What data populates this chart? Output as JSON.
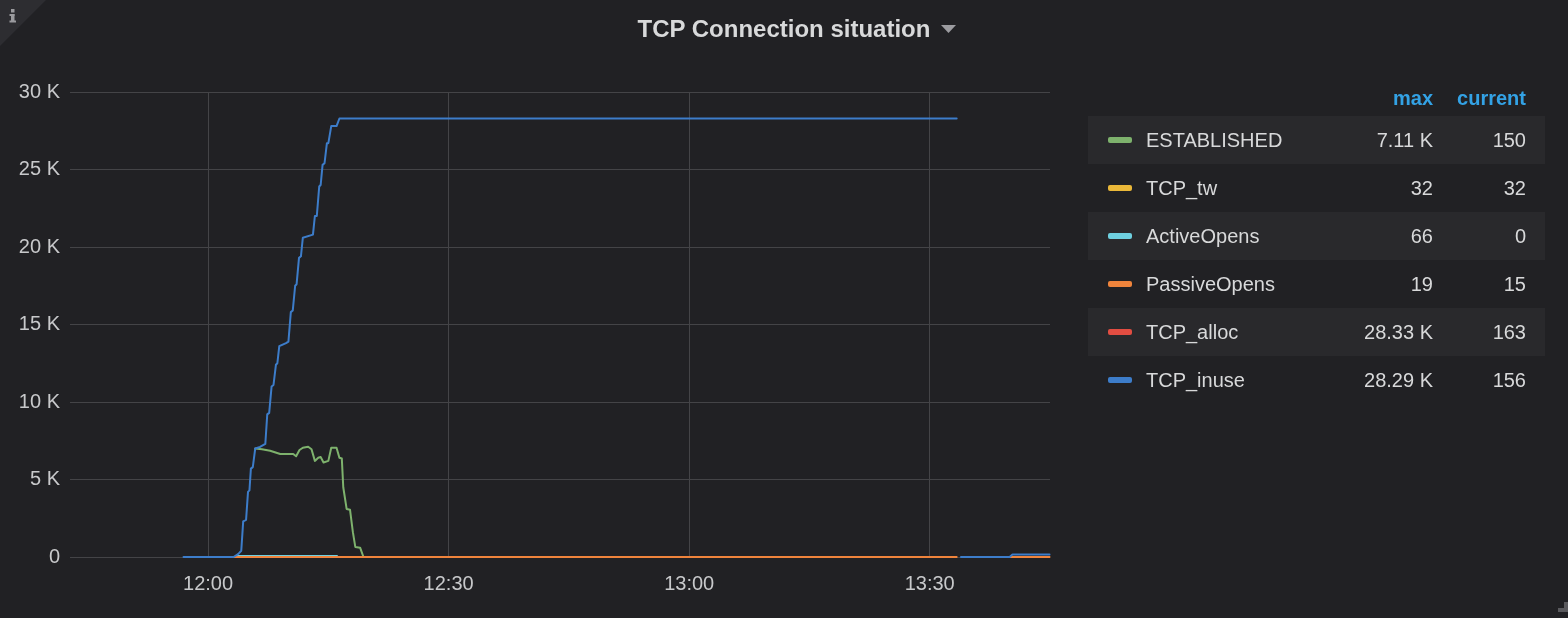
{
  "chart_data": {
    "type": "line",
    "title": "TCP Connection situation",
    "xlim": [
      11.713,
      13.75
    ],
    "xticks": [
      {
        "value": 12,
        "label": "12:00"
      },
      {
        "value": 12.5,
        "label": "12:30"
      },
      {
        "value": 13,
        "label": "13:00"
      },
      {
        "value": 13.5,
        "label": "13:30"
      }
    ],
    "ylim": [
      0,
      30000
    ],
    "yticks": [
      0,
      {
        "value": 5000,
        "label": "5 K"
      },
      {
        "value": 10000,
        "label": "10 K"
      },
      {
        "value": 15000,
        "label": "15 K"
      },
      {
        "value": 20000,
        "label": "20 K"
      },
      {
        "value": 25000,
        "label": "25 K"
      },
      {
        "value": 30000,
        "label": "30 K"
      }
    ],
    "grid": true,
    "legend": "right",
    "series": [
      {
        "name": "ESTABLISHED",
        "color": "#7eb26d",
        "x": [
          12.098,
          12.112,
          12.129,
          12.15,
          12.167,
          12.177,
          12.183,
          12.19,
          12.197,
          12.208,
          12.215,
          12.222,
          12.229,
          12.234,
          12.24,
          12.25,
          12.256,
          12.267,
          12.273,
          12.278,
          12.281,
          12.288,
          12.295,
          12.301,
          12.306,
          12.316,
          12.323
        ],
        "values": [
          7000,
          6950,
          6850,
          6650,
          6650,
          6650,
          6500,
          6900,
          7050,
          7110,
          6950,
          6200,
          6400,
          6450,
          6100,
          6200,
          7050,
          7050,
          6400,
          6350,
          4500,
          3100,
          3050,
          1600,
          650,
          600,
          0
        ]
      },
      {
        "name": "TCP_tw",
        "color": "#eab839"
      },
      {
        "name": "ActiveOpens",
        "color": "#6ed0e0",
        "x": [
          12.06,
          12.268
        ],
        "values": [
          66,
          66
        ]
      },
      {
        "name": "PassiveOpens",
        "color": "#ef843c",
        "x": [
          12.053,
          13.556,
          13.56,
          13.666,
          13.749
        ],
        "values": [
          0,
          0,
          null,
          0,
          0
        ]
      },
      {
        "name": "TCP_alloc",
        "color": "#e24d42"
      },
      {
        "name": "TCP_inuse",
        "color": "#3d7dca",
        "x": [
          11.949,
          12.053,
          12.063,
          12.069,
          12.073,
          12.079,
          12.083,
          12.086,
          12.089,
          12.093,
          12.098,
          12.108,
          12.119,
          12.123,
          12.127,
          12.132,
          12.136,
          12.141,
          12.144,
          12.148,
          12.162,
          12.167,
          12.172,
          12.176,
          12.181,
          12.184,
          12.189,
          12.193,
          12.197,
          12.218,
          12.222,
          12.226,
          12.231,
          12.234,
          12.238,
          12.242,
          12.247,
          12.25,
          12.256,
          12.267,
          12.273,
          13.556,
          13.56,
          13.565,
          13.666,
          13.672,
          13.749
        ],
        "values": [
          0,
          0,
          200,
          400,
          2300,
          2400,
          4200,
          4300,
          5700,
          5800,
          7000,
          7100,
          7300,
          9200,
          9300,
          11000,
          11100,
          12400,
          12500,
          13600,
          13800,
          13900,
          15800,
          15900,
          17500,
          17600,
          19300,
          19400,
          20600,
          20800,
          22000,
          22000,
          23900,
          24000,
          25300,
          25400,
          26700,
          26700,
          27800,
          27800,
          28290,
          28290,
          null,
          0,
          0,
          156,
          156
        ]
      }
    ],
    "annotations": [
      "max",
      "current",
      "7.11 K",
      "150",
      "32",
      "32",
      "66",
      "0",
      "19",
      "15",
      "28.33 K",
      "163",
      "28.29 K",
      "156"
    ]
  }
}
